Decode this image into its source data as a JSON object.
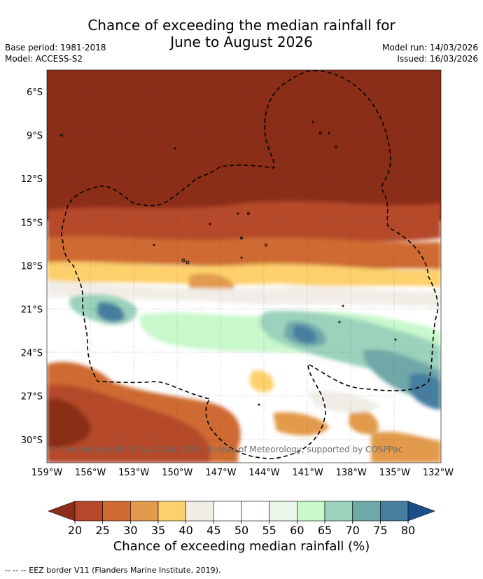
{
  "title_line1": "Chance of exceeding the median rainfall for",
  "title_line2": "June to August 2026",
  "base_period": "Base period: 1981-2018",
  "model": "Model: ACCESS-S2",
  "model_run": "Model run: 14/03/2026",
  "issued": "Issued: 16/03/2026",
  "copyright": "© Commonwealth of Australia 2026, Bureau of Meteorology, supported by COSPPac",
  "colorbar_label": "Chance of exceeding median rainfall (%)",
  "footnote": "-- -- -- EEZ border V11 (Flanders Marine Institute, 2019).",
  "latitude_ticks": [
    "6°S",
    "9°S",
    "12°S",
    "15°S",
    "18°S",
    "21°S",
    "24°S",
    "27°S",
    "30°S"
  ],
  "longitude_ticks": [
    "159°W",
    "156°W",
    "153°W",
    "150°W",
    "147°W",
    "144°W",
    "141°W",
    "138°W",
    "135°W",
    "132°W"
  ],
  "colorbar": {
    "ticks": [
      "20",
      "25",
      "30",
      "35",
      "40",
      "45",
      "50",
      "55",
      "60",
      "65",
      "70",
      "75",
      "80"
    ],
    "colors": [
      "#8b2e18",
      "#b5482a",
      "#cf6a33",
      "#e29a4c",
      "#fdd06c",
      "#f1ede6",
      "#ffffff",
      "#ffffff",
      "#e9f6e9",
      "#c8f8cb",
      "#9bd2bc",
      "#6fa8a9",
      "#477ea0",
      "#1a4f87"
    ]
  },
  "colors": {
    "very_dry": "#8b2e18",
    "dry": "#b5482a",
    "mod_dry": "#cf6a33",
    "light_dry": "#e29a4c",
    "slight_dry": "#fdd06c",
    "neutral": "#f1ede6",
    "slight_wet": "#c8f8cb",
    "wet": "#9bd2bc",
    "more_wet": "#6fa8a9",
    "very_wet": "#477ea0"
  }
}
